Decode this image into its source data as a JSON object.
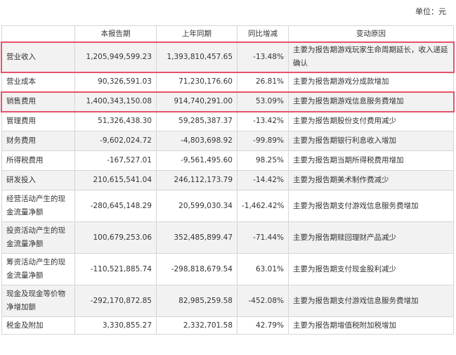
{
  "unit_label": "单位：元",
  "columns": [
    "",
    "本报告期",
    "上年同期",
    "同比增减",
    "变动原因"
  ],
  "highlight_color": "#e8526b",
  "rows": [
    {
      "item": "营业收入",
      "current": "1,205,949,599.23",
      "prior": "1,393,810,457.65",
      "change": "-13.48%",
      "reason": "主要为报告期游戏玩家生命周期延长，收入递延确认",
      "highlighted": true
    },
    {
      "item": "营业成本",
      "current": "90,326,591.03",
      "prior": "71,230,176.60",
      "change": "26.81%",
      "reason": "主要为报告期游戏分成款增加",
      "highlighted": false
    },
    {
      "item": "销售费用",
      "current": "1,400,343,150.08",
      "prior": "914,740,291.00",
      "change": "53.09%",
      "reason": "主要为报告期游戏信息服务费增加",
      "highlighted": true
    },
    {
      "item": "管理费用",
      "current": "51,326,438.30",
      "prior": "59,285,387.37",
      "change": "-13.42%",
      "reason": "主要为报告期股份支付费用减少",
      "highlighted": false
    },
    {
      "item": "财务费用",
      "current": "-9,602,024.72",
      "prior": "-4,803,698.92",
      "change": "-99.89%",
      "reason": "主要为报告期银行利息收入增加",
      "highlighted": false
    },
    {
      "item": "所得税费用",
      "current": "-167,527.01",
      "prior": "-9,561,495.60",
      "change": "98.25%",
      "reason": "主要为报告期当期所得税费用增加",
      "highlighted": false
    },
    {
      "item": "研发投入",
      "current": "210,615,541.04",
      "prior": "246,112,173.79",
      "change": "-14.42%",
      "reason": "主要为报告期美术制作费减少",
      "highlighted": false
    },
    {
      "item": "经营活动产生的现金流量净额",
      "current": "-280,645,148.29",
      "prior": "20,599,030.34",
      "change": "-1,462.42%",
      "reason": "主要为报告期支付游戏信息服务费增加",
      "highlighted": false
    },
    {
      "item": "投资活动产生的现金流量净额",
      "current": "100,679,253.06",
      "prior": "352,485,899.47",
      "change": "-71.44%",
      "reason": "主要为报告期赎回理财产品减少",
      "highlighted": false
    },
    {
      "item": "筹资活动产生的现金流量净额",
      "current": "-110,521,885.74",
      "prior": "-298,818,679.54",
      "change": "63.01%",
      "reason": "主要为报告期支付现金股利减少",
      "highlighted": false
    },
    {
      "item": "现金及现金等价物净增加额",
      "current": "-292,170,872.85",
      "prior": "82,985,259.58",
      "change": "-452.08%",
      "reason": "主要为报告期支付游戏信息服务费增加",
      "highlighted": false
    },
    {
      "item": "税金及附加",
      "current": "3,330,855.27",
      "prior": "2,332,701.58",
      "change": "42.79%",
      "reason": "主要为报告期增值税附加税增加",
      "highlighted": false
    }
  ]
}
